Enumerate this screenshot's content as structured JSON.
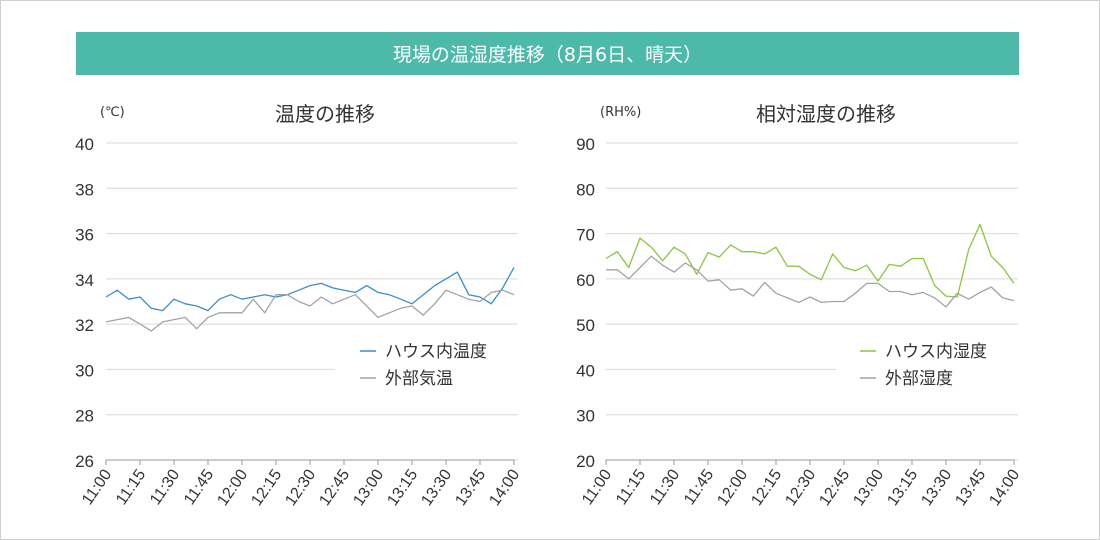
{
  "banner": {
    "title": "現場の温湿度推移（8月6日、晴天）",
    "color": "#4dbaa9"
  },
  "chart_data": [
    {
      "type": "line",
      "title": "温度の推移",
      "unit": "(℃)",
      "ylim": [
        26,
        40
      ],
      "yticks": [
        26,
        28,
        30,
        32,
        34,
        36,
        38,
        40
      ],
      "x": [
        "11:00",
        "11:05",
        "11:10",
        "11:15",
        "11:20",
        "11:25",
        "11:30",
        "11:35",
        "11:40",
        "11:45",
        "11:50",
        "11:55",
        "12:00",
        "12:05",
        "12:10",
        "12:15",
        "12:20",
        "12:25",
        "12:30",
        "12:35",
        "12:40",
        "12:45",
        "12:50",
        "12:55",
        "13:00",
        "13:05",
        "13:10",
        "13:15",
        "13:20",
        "13:25",
        "13:30",
        "13:35",
        "13:40",
        "13:45",
        "13:50",
        "13:55",
        "14:00"
      ],
      "xtick_labels": [
        "11:00",
        "11:15",
        "11:30",
        "11:45",
        "12:00",
        "12:15",
        "12:30",
        "12:45",
        "13:00",
        "13:15",
        "13:30",
        "13:45",
        "14:00"
      ],
      "grid": true,
      "series": [
        {
          "name": "ハウス内温度",
          "color": "#3a8ec8",
          "values": [
            33.2,
            33.5,
            33.1,
            33.2,
            32.7,
            32.6,
            33.1,
            32.9,
            32.8,
            32.6,
            33.1,
            33.3,
            33.1,
            33.2,
            33.3,
            33.2,
            33.3,
            33.5,
            33.7,
            33.8,
            33.6,
            33.5,
            33.4,
            33.7,
            33.4,
            33.3,
            33.1,
            32.9,
            33.3,
            33.7,
            34.0,
            34.3,
            33.3,
            33.2,
            32.9,
            33.6,
            34.5
          ]
        },
        {
          "name": "外部気温",
          "color": "#a3a3a3",
          "values": [
            32.1,
            32.2,
            32.3,
            32.0,
            31.7,
            32.1,
            32.2,
            32.3,
            31.8,
            32.3,
            32.5,
            32.5,
            32.5,
            33.1,
            32.5,
            33.3,
            33.3,
            33.0,
            32.8,
            33.2,
            32.9,
            33.1,
            33.3,
            32.8,
            32.3,
            32.5,
            32.7,
            32.8,
            32.4,
            32.9,
            33.5,
            33.3,
            33.1,
            33.0,
            33.4,
            33.5,
            33.3
          ]
        }
      ]
    },
    {
      "type": "line",
      "title": "相対湿度の推移",
      "unit": "(RH%)",
      "ylim": [
        20,
        90
      ],
      "yticks": [
        20,
        30,
        40,
        50,
        60,
        70,
        80,
        90
      ],
      "x": [
        "11:00",
        "11:05",
        "11:10",
        "11:15",
        "11:20",
        "11:25",
        "11:30",
        "11:35",
        "11:40",
        "11:45",
        "11:50",
        "11:55",
        "12:00",
        "12:05",
        "12:10",
        "12:15",
        "12:20",
        "12:25",
        "12:30",
        "12:35",
        "12:40",
        "12:45",
        "12:50",
        "12:55",
        "13:00",
        "13:05",
        "13:10",
        "13:15",
        "13:20",
        "13:25",
        "13:30",
        "13:35",
        "13:40",
        "13:45",
        "13:50",
        "13:55",
        "14:00"
      ],
      "xtick_labels": [
        "11:00",
        "11:15",
        "11:30",
        "11:45",
        "12:00",
        "12:15",
        "12:30",
        "12:45",
        "13:00",
        "13:15",
        "13:30",
        "13:45",
        "14:00"
      ],
      "grid": true,
      "series": [
        {
          "name": "ハウス内湿度",
          "color": "#8cc63f",
          "values": [
            64.5,
            66,
            62.5,
            69,
            67,
            64,
            67,
            65.5,
            61,
            65.8,
            64.8,
            67.5,
            66,
            66,
            65.5,
            67,
            62.8,
            62.8,
            61,
            59.8,
            65.5,
            62.5,
            61.8,
            63,
            59.5,
            63.2,
            62.8,
            64.5,
            64.5,
            58.5,
            56.2,
            56,
            66.5,
            72,
            65,
            62.5,
            59
          ]
        },
        {
          "name": "外部湿度",
          "color": "#a3a3a3",
          "values": [
            62,
            62,
            60,
            62.5,
            65,
            63,
            61.5,
            63.5,
            62,
            59.5,
            59.8,
            57.5,
            57.8,
            56.2,
            59.2,
            56.8,
            55.8,
            54.8,
            56,
            54.8,
            55,
            55,
            56.8,
            59,
            59,
            57.2,
            57.2,
            56.5,
            57,
            55.8,
            53.8,
            56.8,
            55.5,
            57,
            58.2,
            55.8,
            55.2
          ]
        }
      ]
    }
  ]
}
